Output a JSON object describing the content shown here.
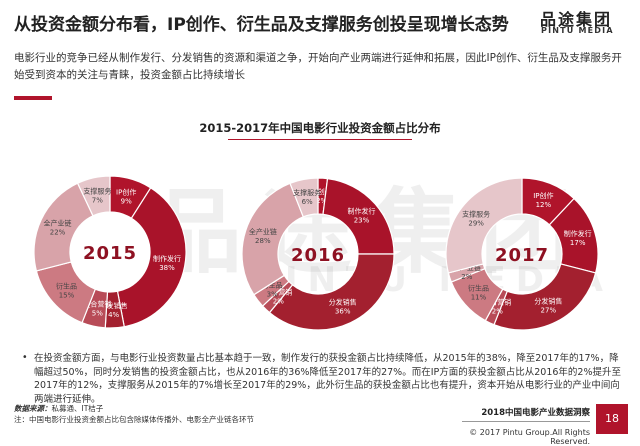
{
  "header": {
    "title": "从投资金额分布看，IP创作、衍生品及支撑服务创投呈现增长态势",
    "logo_cn": "品途集团",
    "logo_en": "PINTU MEDIA"
  },
  "intro": "电影行业的竞争已经从制作发行、分发销售的资源和渠道之争，开始向产业两端进行延伸和拓展，因此IP创作、衍生品及支撑服务开始受到资本的关注与青睐，投资金额占比持续增长",
  "watermark": {
    "cn": "品途集团",
    "en": "PINTU MEDIA"
  },
  "colors": {
    "IP创作": "#b0142b",
    "制作发行": "#a9132a",
    "分发销售": "#a3202f",
    "整合营销": "#b84b57",
    "衍生品": "#cc7a82",
    "全产业链": "#d8a3a9",
    "支撑服务": "#e6c6ca"
  },
  "chart_data": {
    "type": "pie",
    "title": "2015-2017年中国电影行业投资金额占比分布",
    "unit": "%",
    "charts": [
      {
        "year": "2015",
        "slices": [
          {
            "name": "IP创作",
            "value": 9
          },
          {
            "name": "制作发行",
            "value": 38
          },
          {
            "name": "分发销售",
            "value": 4
          },
          {
            "name": "整合营销",
            "value": 5
          },
          {
            "name": "衍生品",
            "value": 15
          },
          {
            "name": "全产业链",
            "value": 22
          },
          {
            "name": "支撑服务",
            "value": 7
          }
        ]
      },
      {
        "year": "2016",
        "slices": [
          {
            "name": "IP创作",
            "value": 2
          },
          {
            "name": "制作发行",
            "value": 23
          },
          {
            "name": "分发销售",
            "value": 36
          },
          {
            "name": "整合营销",
            "value": 2
          },
          {
            "name": "衍生品",
            "value": 3
          },
          {
            "name": "全产业链",
            "value": 28
          },
          {
            "name": "支撑服务",
            "value": 6
          }
        ]
      },
      {
        "year": "2017",
        "slices": [
          {
            "name": "IP创作",
            "value": 12
          },
          {
            "name": "制作发行",
            "value": 17
          },
          {
            "name": "分发销售",
            "value": 27
          },
          {
            "name": "整合营销",
            "value": 2
          },
          {
            "name": "衍生品",
            "value": 11
          },
          {
            "name": "全产业链",
            "value": 2
          },
          {
            "name": "支撑服务",
            "value": 29
          }
        ]
      }
    ]
  },
  "analysis": "在投资金额方面，与电影行业投资数量占比基本趋于一致，制作发行的获投金额占比持续降低，从2015年的38%，降至2017年的17%，降幅超过50%，同时分发销售的投资金额占比，也从2016年的36%降低至2017年的27%。而在IP方面的获投金额占比从2016年的2%提升至2017年的12%，支撑服务从2015年的7%增长至2017年的29%，此外衍生品的获投金额占比也有提升，资本开始从电影行业的产业中间向两端进行延伸。",
  "footer": {
    "source_label": "数据来源：",
    "source_value": "私募通、IT桔子",
    "note": "注：中国电影行业投资金额占比包含除媒体传播外、电影全产业链各环节",
    "report_title": "2018中国电影产业数据洞察",
    "copyright": "© 2017 Pintu Group.All Rights Reserved.",
    "page_number": "18"
  }
}
